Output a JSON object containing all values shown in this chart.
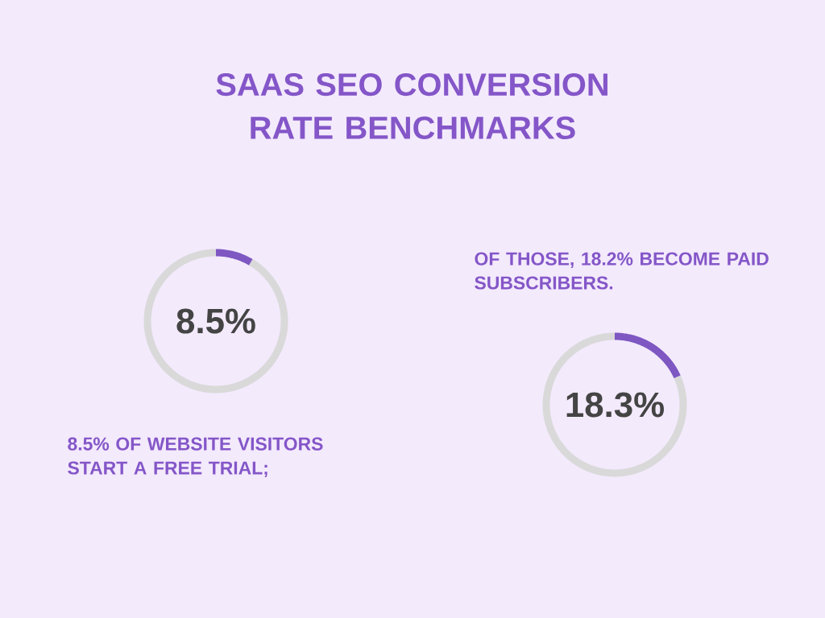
{
  "chart_data": [
    {
      "type": "donut",
      "title": "SAAS SEO CONVERSION RATE BENCHMARKS",
      "categories": [
        null,
        null
      ],
      "values": [
        8.5,
        91.5
      ],
      "colors": [
        "#7e57c2",
        "#d9d9d9"
      ],
      "annotations": [
        "8.5%",
        "8.5% OF WEBSITE VISITORS START A FREE TRIAL;"
      ]
    },
    {
      "type": "donut",
      "categories": [
        null,
        null
      ],
      "values": [
        18.3,
        81.7
      ],
      "colors": [
        "#7e57c2",
        "#d9d9d9"
      ],
      "annotations": [
        "18.3%",
        "OF THOSE, 18.2% BECOME PAID SUBSCRIBERS."
      ]
    }
  ]
}
